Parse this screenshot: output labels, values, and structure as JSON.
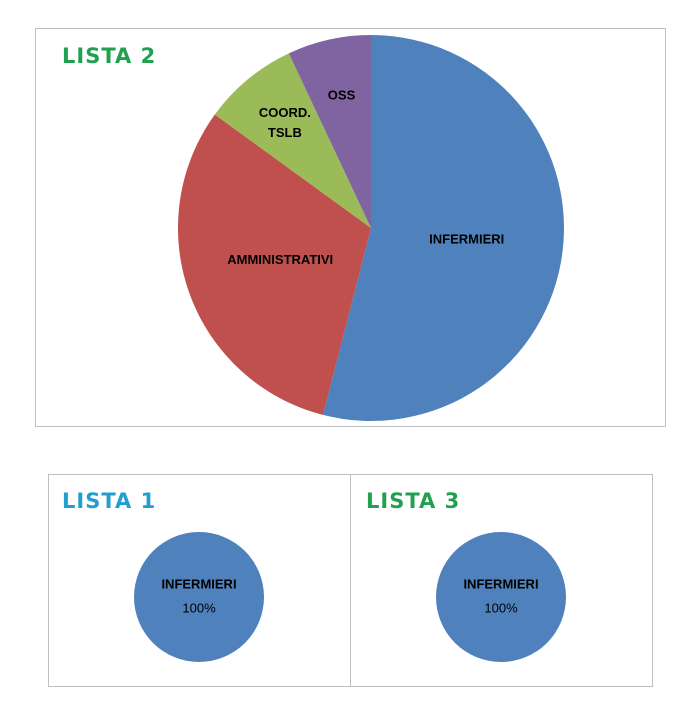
{
  "chart_data": [
    {
      "type": "pie",
      "title": "LISTA 2",
      "title_color": "#20a050",
      "categories": [
        "INFERMIERI",
        "AMMINISTRATIVI",
        "COORD. TSLB",
        "OSS"
      ],
      "values": [
        54,
        31,
        8,
        7
      ],
      "colors": [
        "#4f81bd",
        "#c0504d",
        "#9bbb59",
        "#8064a2"
      ]
    },
    {
      "type": "pie",
      "title": "LISTA 1",
      "title_color": "#20a0d0",
      "categories": [
        "INFERMIERI"
      ],
      "values": [
        100
      ],
      "value_labels": [
        "100%"
      ],
      "colors": [
        "#4f81bd"
      ]
    },
    {
      "type": "pie",
      "title": "LISTA 3",
      "title_color": "#20a050",
      "categories": [
        "INFERMIERI"
      ],
      "values": [
        100
      ],
      "value_labels": [
        "100%"
      ],
      "colors": [
        "#4f81bd"
      ]
    }
  ]
}
